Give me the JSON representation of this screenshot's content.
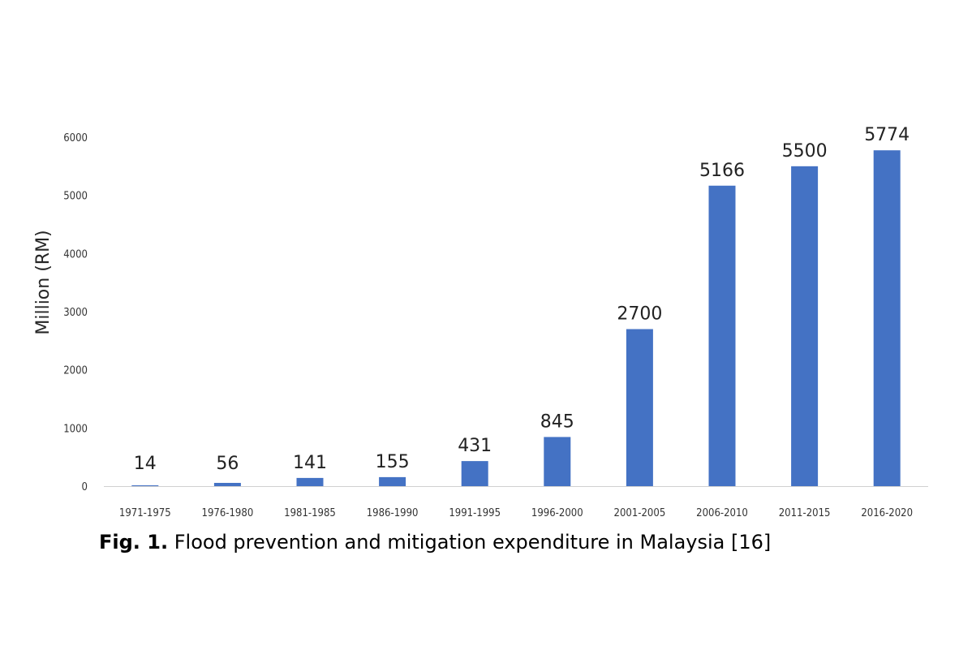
{
  "chart_data": {
    "type": "bar",
    "title": "",
    "xlabel": "",
    "ylabel": "Million (RM)",
    "categories": [
      "1971-1975",
      "1976-1980",
      "1981-1985",
      "1986-1990",
      "1991-1995",
      "1996-2000",
      "2001-2005",
      "2006-2010",
      "2011-2015",
      "2016-2020"
    ],
    "values": [
      14,
      56,
      141,
      155,
      431,
      845,
      2700,
      5166,
      5500,
      5774
    ],
    "ylim": [
      0,
      6000
    ],
    "yticks": [
      0,
      1000,
      2000,
      3000,
      4000,
      5000,
      6000
    ],
    "grid": false,
    "bar_color": "#4472C4"
  },
  "caption": {
    "label": "Fig. 1.",
    "text": " Flood prevention and mitigation expenditure in Malaysia [16]"
  }
}
